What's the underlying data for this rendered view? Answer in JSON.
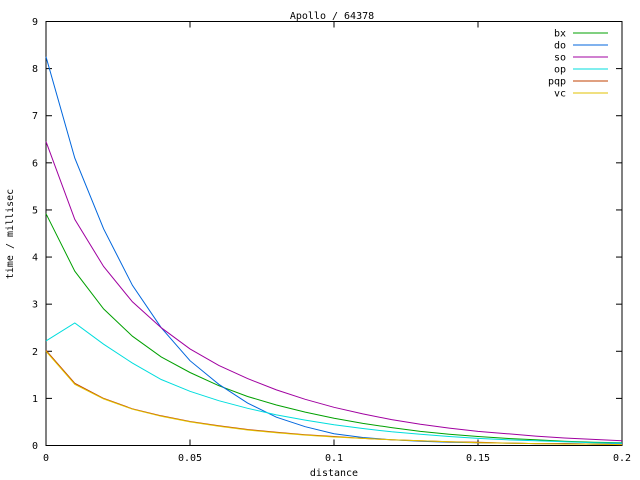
{
  "chart_data": {
    "type": "line",
    "title": "Apollo / 64378",
    "xlabel": "distance",
    "ylabel": "time / millisec",
    "xlim": [
      0,
      0.2
    ],
    "ylim": [
      0,
      9
    ],
    "grid": false,
    "legend_placement": "top-right",
    "x_ticks": [
      {
        "value": 0,
        "label": "0"
      },
      {
        "value": 0.05,
        "label": "0.05"
      },
      {
        "value": 0.1,
        "label": "0.1"
      },
      {
        "value": 0.15,
        "label": "0.15"
      },
      {
        "value": 0.2,
        "label": "0.2"
      }
    ],
    "y_ticks": [
      {
        "value": 0,
        "label": "0"
      },
      {
        "value": 1,
        "label": "1"
      },
      {
        "value": 2,
        "label": "2"
      },
      {
        "value": 3,
        "label": "3"
      },
      {
        "value": 4,
        "label": "4"
      },
      {
        "value": 5,
        "label": "5"
      },
      {
        "value": 6,
        "label": "6"
      },
      {
        "value": 7,
        "label": "7"
      },
      {
        "value": 8,
        "label": "8"
      },
      {
        "value": 9,
        "label": "9"
      }
    ],
    "x": [
      0,
      0.01,
      0.02,
      0.03,
      0.04,
      0.05,
      0.06,
      0.07,
      0.08,
      0.09,
      0.1,
      0.11,
      0.12,
      0.13,
      0.14,
      0.15,
      0.16,
      0.17,
      0.18,
      0.19,
      0.2
    ],
    "series": [
      {
        "name": "bx",
        "color": "#00a000",
        "values": [
          4.92,
          3.7,
          2.9,
          2.32,
          1.88,
          1.55,
          1.27,
          1.04,
          0.86,
          0.71,
          0.58,
          0.47,
          0.38,
          0.3,
          0.24,
          0.19,
          0.15,
          0.12,
          0.09,
          0.07,
          0.06
        ]
      },
      {
        "name": "do",
        "color": "#0066dd",
        "values": [
          8.25,
          6.1,
          4.6,
          3.4,
          2.5,
          1.8,
          1.3,
          0.9,
          0.6,
          0.4,
          0.25,
          0.17,
          0.12,
          0.09,
          0.07,
          0.06,
          0.05,
          0.04,
          0.04,
          0.03,
          0.03
        ]
      },
      {
        "name": "so",
        "color": "#a000a0",
        "values": [
          6.45,
          4.8,
          3.8,
          3.05,
          2.5,
          2.05,
          1.7,
          1.42,
          1.18,
          0.98,
          0.81,
          0.67,
          0.55,
          0.45,
          0.37,
          0.3,
          0.25,
          0.2,
          0.16,
          0.13,
          0.1
        ]
      },
      {
        "name": "op",
        "color": "#00dddd",
        "values": [
          2.22,
          2.6,
          2.15,
          1.75,
          1.4,
          1.15,
          0.95,
          0.79,
          0.65,
          0.54,
          0.44,
          0.36,
          0.29,
          0.24,
          0.19,
          0.15,
          0.12,
          0.1,
          0.08,
          0.06,
          0.05
        ]
      },
      {
        "name": "pqp",
        "color": "#c04000",
        "values": [
          2.02,
          1.32,
          1.0,
          0.78,
          0.63,
          0.51,
          0.42,
          0.34,
          0.28,
          0.23,
          0.19,
          0.15,
          0.12,
          0.1,
          0.08,
          0.07,
          0.05,
          0.04,
          0.04,
          0.03,
          0.02
        ]
      },
      {
        "name": "vc",
        "color": "#e0c000",
        "values": [
          2.0,
          1.3,
          0.99,
          0.77,
          0.62,
          0.5,
          0.41,
          0.33,
          0.27,
          0.22,
          0.18,
          0.15,
          0.12,
          0.1,
          0.08,
          0.06,
          0.05,
          0.04,
          0.03,
          0.03,
          0.02
        ]
      }
    ]
  }
}
